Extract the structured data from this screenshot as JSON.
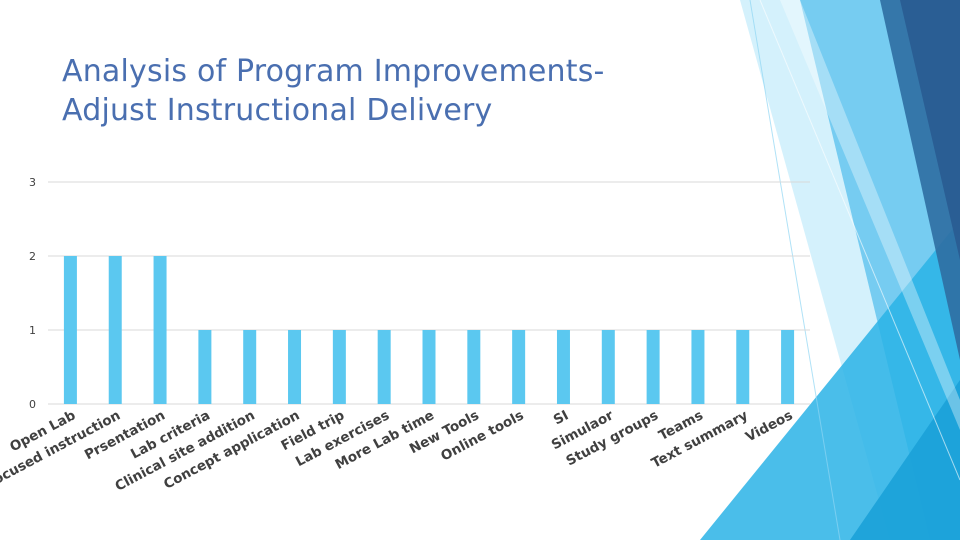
{
  "title": {
    "line1": "Analysis of Program Improvements-",
    "line2": "Adjust Instructional Delivery"
  },
  "colors": {
    "bar": "#5bc8f0",
    "title": "#4a6fb0",
    "grid": "#d9d9d9",
    "text": "#404040"
  },
  "chart_data": {
    "type": "bar",
    "title": "",
    "xlabel": "",
    "ylabel": "",
    "ylim": [
      0,
      3
    ],
    "yticks": [
      0,
      1,
      2,
      3
    ],
    "grid": true,
    "legend": "none",
    "categories": [
      "Open Lab",
      "Focused instruction",
      "Prsentation",
      "Lab criteria",
      "Clinical site addition",
      "Concept application",
      "Field trip",
      "Lab exercises",
      "More Lab time",
      "New Tools",
      "Online tools",
      "SI",
      "Simulaor",
      "Study groups",
      "Teams",
      "Text summary",
      "Videos"
    ],
    "values": [
      2,
      2,
      2,
      1,
      1,
      1,
      1,
      1,
      1,
      1,
      1,
      1,
      1,
      1,
      1,
      1,
      1
    ]
  }
}
